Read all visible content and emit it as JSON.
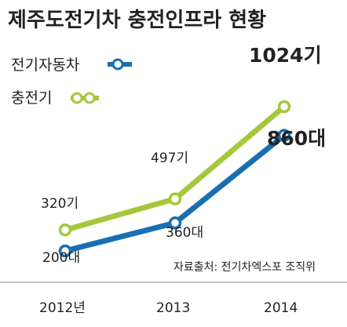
{
  "chart_data": {
    "type": "line",
    "title": "제주도전기차 충전인프라 현황",
    "categories": [
      "2012년",
      "2013",
      "2014"
    ],
    "series": [
      {
        "name": "전기자동차",
        "color": "#1a6fb0",
        "values": [
          200,
          360,
          860
        ],
        "value_labels": [
          "200대",
          "360대",
          "860대"
        ]
      },
      {
        "name": "충전기",
        "color": "#a4c83c",
        "values": [
          320,
          497,
          1024
        ],
        "value_labels": [
          "320기",
          "497기",
          "1024기"
        ]
      }
    ],
    "ylim": [
      0,
      1100
    ],
    "grid": false,
    "legend_position": "top-left",
    "source": "자료출처: 전기차엑스포 조직위"
  }
}
